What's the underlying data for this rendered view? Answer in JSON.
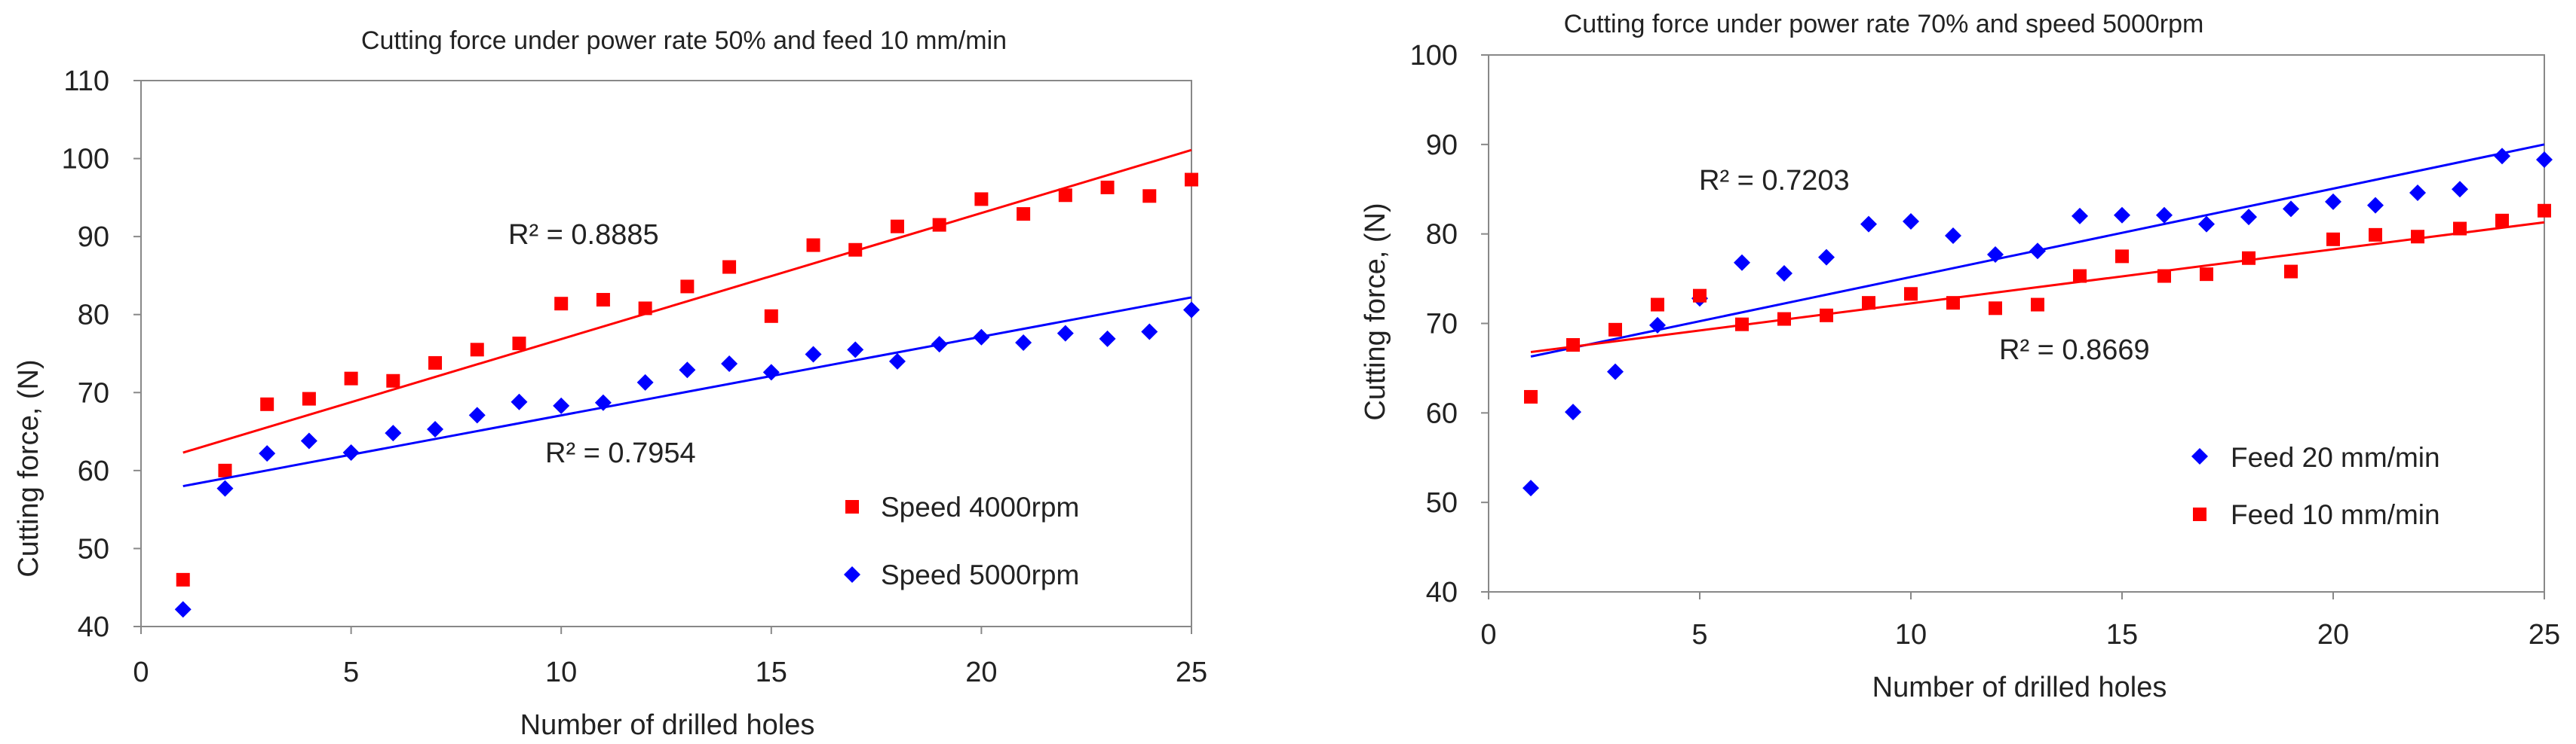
{
  "chart_data": [
    {
      "type": "scatter",
      "title": "Cutting force under power rate 50% and feed 10 mm/min",
      "xlabel": "Number of drilled holes",
      "ylabel": "Cutting force, (N)",
      "xlim": [
        0,
        25
      ],
      "ylim": [
        40,
        110
      ],
      "xticks": [
        0,
        5,
        10,
        15,
        20,
        25
      ],
      "yticks": [
        40,
        50,
        60,
        70,
        80,
        90,
        100,
        110
      ],
      "legend_position": "lower-right",
      "series": [
        {
          "name": "Speed 4000rpm",
          "marker": "square",
          "color": "#ff0000",
          "x": [
            1,
            2,
            3,
            4,
            5,
            6,
            7,
            8,
            9,
            10,
            11,
            12,
            13,
            14,
            15,
            16,
            17,
            18,
            19,
            20,
            21,
            22,
            23,
            24,
            25
          ],
          "values": [
            46,
            60,
            68.5,
            69.2,
            71.8,
            71.5,
            73.8,
            75.5,
            76.3,
            81.4,
            81.9,
            80.8,
            83.6,
            86.1,
            79.8,
            88.9,
            88.3,
            91.3,
            91.5,
            94.8,
            92.9,
            95.3,
            96.3,
            95.2,
            97.3
          ],
          "trendline": {
            "x": [
              1,
              25
            ],
            "y": [
              62.3,
              101.1
            ],
            "r2_label": "R² = 0.8885"
          }
        },
        {
          "name": "Speed 5000rpm",
          "marker": "diamond",
          "color": "#0000ff",
          "x": [
            1,
            2,
            3,
            4,
            5,
            6,
            7,
            8,
            9,
            10,
            11,
            12,
            13,
            14,
            15,
            16,
            17,
            18,
            19,
            20,
            21,
            22,
            23,
            24,
            25
          ],
          "values": [
            42.2,
            57.7,
            62.2,
            63.8,
            62.3,
            64.8,
            65.3,
            67.1,
            68.8,
            68.3,
            68.7,
            71.3,
            72.9,
            73.7,
            72.6,
            74.9,
            75.5,
            74,
            76.2,
            77.1,
            76.4,
            77.6,
            76.9,
            77.8,
            80.6
          ],
          "trendline": {
            "x": [
              1,
              25
            ],
            "y": [
              58.0,
              82.2
            ],
            "r2_label": "R² = 0.7954"
          }
        }
      ]
    },
    {
      "type": "scatter",
      "title": "Cutting force under power rate 70% and speed 5000rpm",
      "xlabel": "Number of drilled holes",
      "ylabel": "Cutting force, (N)",
      "xlim": [
        0,
        25
      ],
      "ylim": [
        40,
        100
      ],
      "xticks": [
        0,
        5,
        10,
        15,
        20,
        25
      ],
      "yticks": [
        40,
        50,
        60,
        70,
        80,
        90,
        100
      ],
      "legend_position": "lower-right",
      "series": [
        {
          "name": "Feed 20 mm/min",
          "marker": "diamond",
          "color": "#0000ff",
          "x": [
            1,
            2,
            3,
            4,
            5,
            6,
            7,
            8,
            9,
            10,
            11,
            12,
            13,
            14,
            15,
            16,
            17,
            18,
            19,
            20,
            21,
            22,
            23,
            24,
            25
          ],
          "values": [
            51.6,
            60.1,
            64.6,
            69.8,
            72.8,
            76.8,
            75.6,
            77.4,
            81.1,
            81.4,
            79.8,
            77.7,
            78.1,
            82,
            82.1,
            82.1,
            81.1,
            81.9,
            82.8,
            83.6,
            83.2,
            84.6,
            85,
            88.7,
            88.3
          ],
          "trendline": {
            "x": [
              1,
              25
            ],
            "y": [
              66.3,
              90.0
            ],
            "r2_label": "R² = 0.7203"
          }
        },
        {
          "name": "Feed 10 mm/min",
          "marker": "square",
          "color": "#ff0000",
          "x": [
            1,
            2,
            3,
            4,
            5,
            6,
            7,
            8,
            9,
            10,
            11,
            12,
            13,
            14,
            15,
            16,
            17,
            18,
            19,
            20,
            21,
            22,
            23,
            24,
            25
          ],
          "values": [
            61.8,
            67.6,
            69.3,
            72.1,
            73.1,
            69.9,
            70.5,
            70.9,
            72.3,
            73.3,
            72.3,
            71.7,
            72.1,
            75.3,
            77.5,
            75.3,
            75.5,
            77.3,
            75.8,
            79.4,
            79.9,
            79.7,
            80.6,
            81.5,
            82.6
          ],
          "trendline": {
            "x": [
              1,
              25
            ],
            "y": [
              66.8,
              81.3
            ],
            "r2_label": "R² = 0.8669"
          }
        }
      ]
    }
  ]
}
